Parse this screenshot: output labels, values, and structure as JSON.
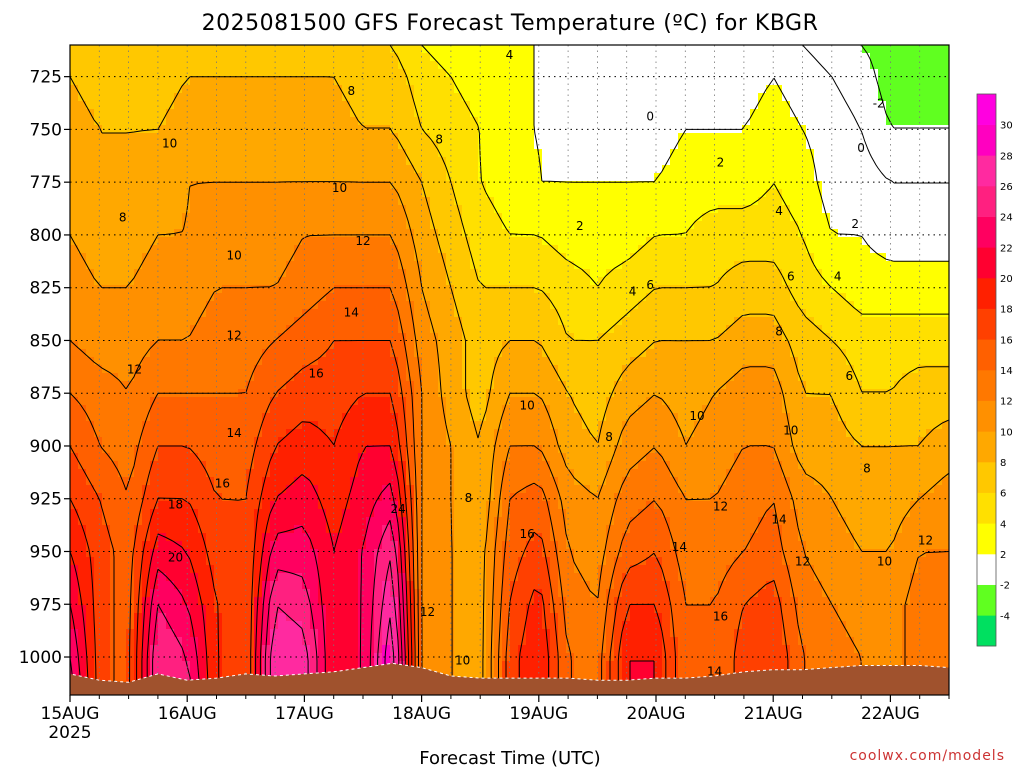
{
  "chart_data": {
    "type": "heatmap",
    "title": "2025081500 GFS Forecast Temperature (ºC) for KBGR",
    "xlabel": "Forecast Time (UTC)",
    "ylabel": "",
    "x_ticks": [
      {
        "label": "15AUG",
        "sub": "2025",
        "day": 0
      },
      {
        "label": "16AUG",
        "sub": "",
        "day": 1
      },
      {
        "label": "17AUG",
        "sub": "",
        "day": 2
      },
      {
        "label": "18AUG",
        "sub": "",
        "day": 3
      },
      {
        "label": "19AUG",
        "sub": "",
        "day": 4
      },
      {
        "label": "20AUG",
        "sub": "",
        "day": 5
      },
      {
        "label": "21AUG",
        "sub": "",
        "day": 6
      },
      {
        "label": "22AUG",
        "sub": "",
        "day": 7
      }
    ],
    "xlim": [
      0,
      7.5
    ],
    "y_ticks": [
      725,
      750,
      775,
      800,
      825,
      850,
      875,
      900,
      925,
      950,
      975,
      1000
    ],
    "ylim": [
      1018,
      710
    ],
    "y_axis_inverted": true,
    "grid": true,
    "colorbar": {
      "placement": "right",
      "ticks": [
        -4,
        -2,
        2,
        4,
        6,
        8,
        10,
        12,
        14,
        16,
        18,
        20,
        22,
        24,
        26,
        28,
        30
      ],
      "bins": [
        {
          "lo": -6,
          "hi": -4,
          "color": "#00e060"
        },
        {
          "lo": -4,
          "hi": -2,
          "color": "#60ff20"
        },
        {
          "lo": -2,
          "hi": 2,
          "color": "#ffffff"
        },
        {
          "lo": 2,
          "hi": 4,
          "color": "#ffff00"
        },
        {
          "lo": 4,
          "hi": 6,
          "color": "#ffe000"
        },
        {
          "lo": 6,
          "hi": 8,
          "color": "#ffc800"
        },
        {
          "lo": 8,
          "hi": 10,
          "color": "#ffa800"
        },
        {
          "lo": 10,
          "hi": 12,
          "color": "#ff9000"
        },
        {
          "lo": 12,
          "hi": 14,
          "color": "#ff7800"
        },
        {
          "lo": 14,
          "hi": 16,
          "color": "#ff6000"
        },
        {
          "lo": 16,
          "hi": 18,
          "color": "#ff4000"
        },
        {
          "lo": 18,
          "hi": 20,
          "color": "#ff2000"
        },
        {
          "lo": 20,
          "hi": 22,
          "color": "#ff0030"
        },
        {
          "lo": 22,
          "hi": 24,
          "color": "#ff0060"
        },
        {
          "lo": 24,
          "hi": 26,
          "color": "#ff2080"
        },
        {
          "lo": 26,
          "hi": 28,
          "color": "#ff2aa0"
        },
        {
          "lo": 28,
          "hi": 30,
          "color": "#ff00c0"
        },
        {
          "lo": 30,
          "hi": 32,
          "color": "#ff00e0"
        }
      ]
    },
    "surface_pressure": [
      [
        0.0,
        1008
      ],
      [
        0.25,
        1011
      ],
      [
        0.5,
        1012
      ],
      [
        0.75,
        1008
      ],
      [
        1.0,
        1011
      ],
      [
        1.25,
        1010
      ],
      [
        1.5,
        1008
      ],
      [
        1.75,
        1009
      ],
      [
        2.0,
        1008
      ],
      [
        2.25,
        1007
      ],
      [
        2.5,
        1005
      ],
      [
        2.75,
        1003
      ],
      [
        3.0,
        1005
      ],
      [
        3.25,
        1009
      ],
      [
        3.5,
        1010
      ],
      [
        3.75,
        1010
      ],
      [
        4.0,
        1010
      ],
      [
        4.25,
        1010
      ],
      [
        4.5,
        1011
      ],
      [
        4.75,
        1011
      ],
      [
        5.0,
        1010
      ],
      [
        5.25,
        1010
      ],
      [
        5.5,
        1009
      ],
      [
        5.75,
        1007
      ],
      [
        6.0,
        1006
      ],
      [
        6.25,
        1006
      ],
      [
        6.5,
        1005
      ],
      [
        6.75,
        1004
      ],
      [
        7.0,
        1004
      ],
      [
        7.25,
        1004
      ],
      [
        7.5,
        1005
      ]
    ],
    "temperature_profiles": {
      "levels": [
        710,
        725,
        750,
        775,
        800,
        825,
        850,
        875,
        900,
        925,
        950,
        975,
        1000,
        1015
      ],
      "series": [
        {
          "day": 0.0,
          "values": [
            8,
            8,
            9,
            9,
            10,
            11,
            12,
            14,
            16,
            18,
            20,
            22,
            24,
            25
          ]
        },
        {
          "day": 0.25,
          "values": [
            7,
            7,
            8,
            8,
            9,
            10,
            11,
            13,
            14,
            16,
            17,
            17,
            17,
            17
          ]
        },
        {
          "day": 0.5,
          "values": [
            7,
            7,
            8,
            8,
            9,
            10,
            11,
            12,
            13,
            14,
            15,
            15,
            15,
            15
          ]
        },
        {
          "day": 0.75,
          "values": [
            7,
            7,
            8,
            9,
            10,
            11,
            12,
            14,
            16,
            18,
            21,
            24,
            26,
            26
          ]
        },
        {
          "day": 1.0,
          "values": [
            7,
            8,
            9,
            10,
            10,
            11,
            12,
            14,
            16,
            18,
            20,
            22,
            24,
            25
          ]
        },
        {
          "day": 1.25,
          "values": [
            7,
            8,
            9,
            10,
            11,
            12,
            13,
            14,
            15,
            16,
            17,
            18,
            18,
            18
          ]
        },
        {
          "day": 1.5,
          "values": [
            7,
            8,
            9,
            10,
            11,
            12,
            13,
            14,
            15,
            16,
            16,
            16,
            16,
            16
          ]
        },
        {
          "day": 1.75,
          "values": [
            7,
            8,
            9,
            10,
            11,
            12,
            14,
            16,
            18,
            20,
            23,
            26,
            28,
            28
          ]
        },
        {
          "day": 2.0,
          "values": [
            7,
            8,
            9,
            10,
            12,
            13,
            15,
            17,
            19,
            21,
            23,
            25,
            27,
            27
          ]
        },
        {
          "day": 2.25,
          "values": [
            7,
            8,
            9,
            10,
            12,
            14,
            16,
            17,
            18,
            19,
            20,
            20,
            20,
            20
          ]
        },
        {
          "day": 2.5,
          "values": [
            6,
            7,
            8,
            10,
            12,
            14,
            16,
            18,
            20,
            21,
            22,
            22,
            22,
            22
          ]
        },
        {
          "day": 2.75,
          "values": [
            6,
            7,
            8,
            10,
            12,
            14,
            16,
            18,
            20,
            23,
            26,
            28,
            30,
            30
          ]
        },
        {
          "day": 3.0,
          "values": [
            4,
            5,
            6,
            8,
            9,
            10,
            11,
            12,
            12,
            12,
            12,
            12,
            12,
            12
          ]
        },
        {
          "day": 3.25,
          "values": [
            3,
            4,
            5,
            6,
            7,
            8,
            9,
            9,
            10,
            10,
            10,
            10,
            10,
            10
          ]
        },
        {
          "day": 3.5,
          "values": [
            3,
            3,
            4,
            4,
            5,
            6,
            7,
            7,
            8,
            8,
            9,
            9,
            9,
            9
          ]
        },
        {
          "day": 3.75,
          "values": [
            2,
            2,
            2,
            3,
            4,
            6,
            8,
            10,
            12,
            14,
            15,
            16,
            17,
            17
          ]
        },
        {
          "day": 4.0,
          "values": [
            2,
            2,
            2,
            2,
            4,
            6,
            8,
            10,
            12,
            15,
            17,
            19,
            20,
            20
          ]
        },
        {
          "day": 4.25,
          "values": [
            1,
            1,
            1,
            2,
            3,
            5,
            6,
            8,
            9,
            11,
            12,
            13,
            14,
            14
          ]
        },
        {
          "day": 4.5,
          "values": [
            0,
            1,
            1,
            2,
            3,
            4,
            6,
            7,
            8,
            10,
            11,
            12,
            13,
            13
          ]
        },
        {
          "day": 4.75,
          "values": [
            0,
            0,
            1,
            2,
            3,
            5,
            7,
            9,
            11,
            13,
            15,
            18,
            20,
            20
          ]
        },
        {
          "day": 5.0,
          "values": [
            0,
            0,
            1,
            2,
            4,
            6,
            8,
            10,
            12,
            14,
            16,
            18,
            20,
            20
          ]
        },
        {
          "day": 5.25,
          "values": [
            0,
            1,
            2,
            3,
            4,
            6,
            8,
            9,
            10,
            12,
            13,
            14,
            14,
            14
          ]
        },
        {
          "day": 5.5,
          "values": [
            0,
            1,
            2,
            3,
            5,
            6,
            8,
            10,
            11,
            12,
            13,
            14,
            14,
            14
          ]
        },
        {
          "day": 5.75,
          "values": [
            1,
            1,
            2,
            3,
            5,
            7,
            9,
            11,
            12,
            13,
            14,
            16,
            17,
            17
          ]
        },
        {
          "day": 6.0,
          "values": [
            1,
            2,
            3,
            4,
            5,
            7,
            9,
            11,
            12,
            14,
            15,
            17,
            18,
            18
          ]
        },
        {
          "day": 6.25,
          "values": [
            0,
            1,
            2,
            3,
            4,
            5,
            7,
            8,
            9,
            11,
            12,
            13,
            14,
            14
          ]
        },
        {
          "day": 6.5,
          "values": [
            -1,
            0,
            1,
            1,
            2,
            4,
            6,
            8,
            9,
            10,
            11,
            12,
            13,
            13
          ]
        },
        {
          "day": 6.75,
          "values": [
            -2,
            -1,
            0,
            1,
            2,
            3,
            5,
            6,
            8,
            9,
            10,
            11,
            12,
            12
          ]
        },
        {
          "day": 7.0,
          "values": [
            -3,
            -3,
            -2,
            0,
            1,
            3,
            5,
            6,
            8,
            9,
            10,
            11,
            11,
            11
          ]
        },
        {
          "day": 7.25,
          "values": [
            -3,
            -3,
            -2,
            0,
            1,
            3,
            5,
            7,
            8,
            10,
            12,
            13,
            13,
            13
          ]
        },
        {
          "day": 7.5,
          "values": [
            -3,
            -3,
            -2,
            0,
            1,
            3,
            5,
            7,
            9,
            11,
            12,
            13,
            14,
            14
          ]
        }
      ]
    },
    "contour_labels": [
      {
        "text": "4",
        "day": 3.75,
        "p": 715
      },
      {
        "text": "8",
        "day": 2.4,
        "p": 732
      },
      {
        "text": "8",
        "day": 3.15,
        "p": 755
      },
      {
        "text": "10",
        "day": 0.85,
        "p": 757
      },
      {
        "text": "10",
        "day": 2.3,
        "p": 778
      },
      {
        "text": "8",
        "day": 0.45,
        "p": 792
      },
      {
        "text": "12",
        "day": 2.5,
        "p": 803
      },
      {
        "text": "10",
        "day": 1.4,
        "p": 810
      },
      {
        "text": "14",
        "day": 2.4,
        "p": 837
      },
      {
        "text": "12",
        "day": 1.4,
        "p": 848
      },
      {
        "text": "12",
        "day": 0.55,
        "p": 864
      },
      {
        "text": "16",
        "day": 2.1,
        "p": 866
      },
      {
        "text": "14",
        "day": 1.4,
        "p": 894
      },
      {
        "text": "16",
        "day": 1.3,
        "p": 918
      },
      {
        "text": "18",
        "day": 0.9,
        "p": 928
      },
      {
        "text": "20",
        "day": 0.9,
        "p": 953
      },
      {
        "text": "24",
        "day": 2.8,
        "p": 930
      },
      {
        "text": "8",
        "day": 3.4,
        "p": 925
      },
      {
        "text": "12",
        "day": 3.05,
        "p": 979
      },
      {
        "text": "10",
        "day": 3.35,
        "p": 1002
      },
      {
        "text": "10",
        "day": 3.9,
        "p": 881
      },
      {
        "text": "16",
        "day": 3.9,
        "p": 942
      },
      {
        "text": "2",
        "day": 4.35,
        "p": 796
      },
      {
        "text": "4",
        "day": 4.8,
        "p": 827
      },
      {
        "text": "6",
        "day": 4.95,
        "p": 824
      },
      {
        "text": "8",
        "day": 4.6,
        "p": 896
      },
      {
        "text": "2",
        "day": 5.55,
        "p": 766
      },
      {
        "text": "4",
        "day": 6.05,
        "p": 789
      },
      {
        "text": "6",
        "day": 6.15,
        "p": 820
      },
      {
        "text": "8",
        "day": 6.05,
        "p": 846
      },
      {
        "text": "10",
        "day": 5.35,
        "p": 886
      },
      {
        "text": "10",
        "day": 6.15,
        "p": 893
      },
      {
        "text": "12",
        "day": 5.55,
        "p": 929
      },
      {
        "text": "14",
        "day": 5.2,
        "p": 948
      },
      {
        "text": "14",
        "day": 6.05,
        "p": 935
      },
      {
        "text": "12",
        "day": 6.25,
        "p": 955
      },
      {
        "text": "16",
        "day": 5.55,
        "p": 981
      },
      {
        "text": "14",
        "day": 5.5,
        "p": 1007
      },
      {
        "text": "6",
        "day": 6.65,
        "p": 867
      },
      {
        "text": "4",
        "day": 6.55,
        "p": 820
      },
      {
        "text": "2",
        "day": 6.7,
        "p": 795
      },
      {
        "text": "0",
        "day": 6.75,
        "p": 759
      },
      {
        "text": "-2",
        "day": 6.9,
        "p": 738
      },
      {
        "text": "0",
        "day": 4.95,
        "p": 744
      },
      {
        "text": "8",
        "day": 6.8,
        "p": 911
      },
      {
        "text": "10",
        "day": 6.95,
        "p": 955
      },
      {
        "text": "12",
        "day": 7.3,
        "p": 945
      }
    ]
  },
  "footer": {
    "credit": "coolwx.com/models"
  }
}
